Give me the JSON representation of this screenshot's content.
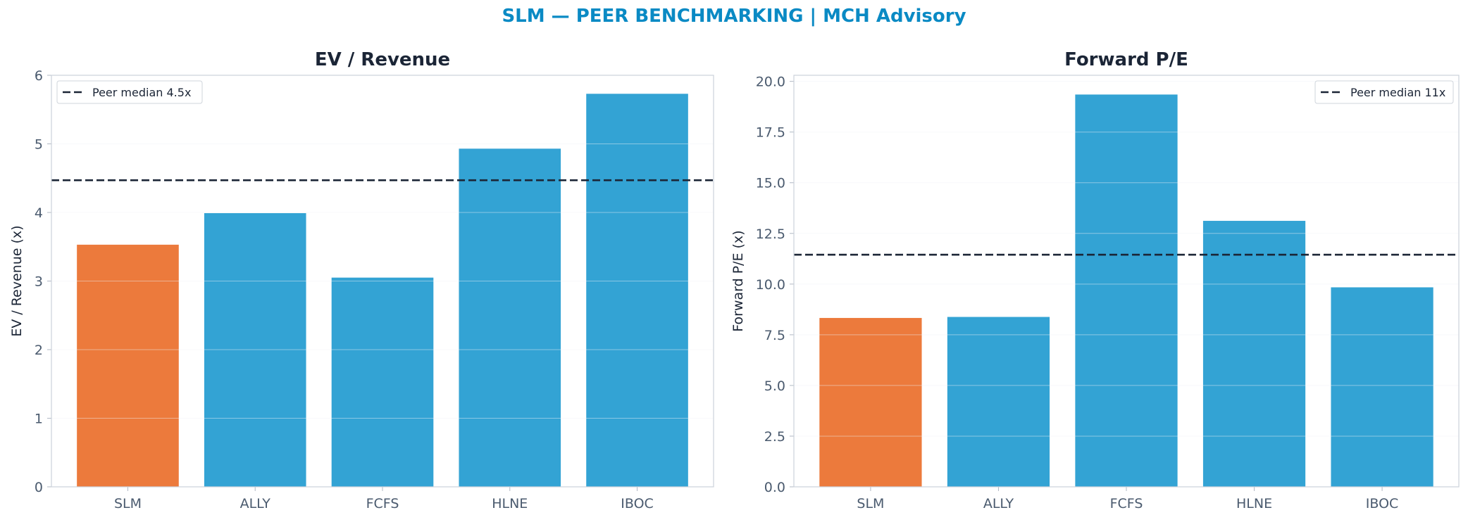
{
  "suptitle": "SLM — PEER BENCHMARKING | MCH Advisory",
  "colors": {
    "highlight": "#ec7a3c",
    "peer": "#33a3d4",
    "median_line": "#1b2536",
    "title": "#1b2536",
    "tick": "#4a5a6e",
    "suptitle": "#0a8ac4"
  },
  "chart_data": [
    {
      "type": "bar",
      "title": "EV / Revenue",
      "xlabel": "",
      "ylabel": "EV / Revenue (x)",
      "categories": [
        "SLM",
        "ALLY",
        "FCFS",
        "HLNE",
        "IBOC"
      ],
      "values": [
        3.53,
        3.99,
        3.05,
        4.93,
        5.73
      ],
      "highlight": "SLM",
      "ylim": [
        0,
        6
      ],
      "yticks": [
        "0",
        "1",
        "2",
        "3",
        "4",
        "5",
        "6"
      ],
      "reference_line": {
        "value": 4.47,
        "label": "Peer median 4.5x",
        "style": "dashed"
      },
      "legend_position": "top-left",
      "grid": true
    },
    {
      "type": "bar",
      "title": "Forward P/E",
      "xlabel": "",
      "ylabel": "Forward P/E (x)",
      "categories": [
        "SLM",
        "ALLY",
        "FCFS",
        "HLNE",
        "IBOC"
      ],
      "values": [
        8.33,
        8.38,
        19.35,
        13.12,
        9.84
      ],
      "highlight": "SLM",
      "ylim": [
        0,
        20.3
      ],
      "yticks": [
        "0.0",
        "2.5",
        "5.0",
        "7.5",
        "10.0",
        "12.5",
        "15.0",
        "17.5",
        "20.0"
      ],
      "reference_line": {
        "value": 11.45,
        "label": "Peer median 11x",
        "style": "dashed"
      },
      "legend_position": "top-right",
      "grid": true
    }
  ]
}
